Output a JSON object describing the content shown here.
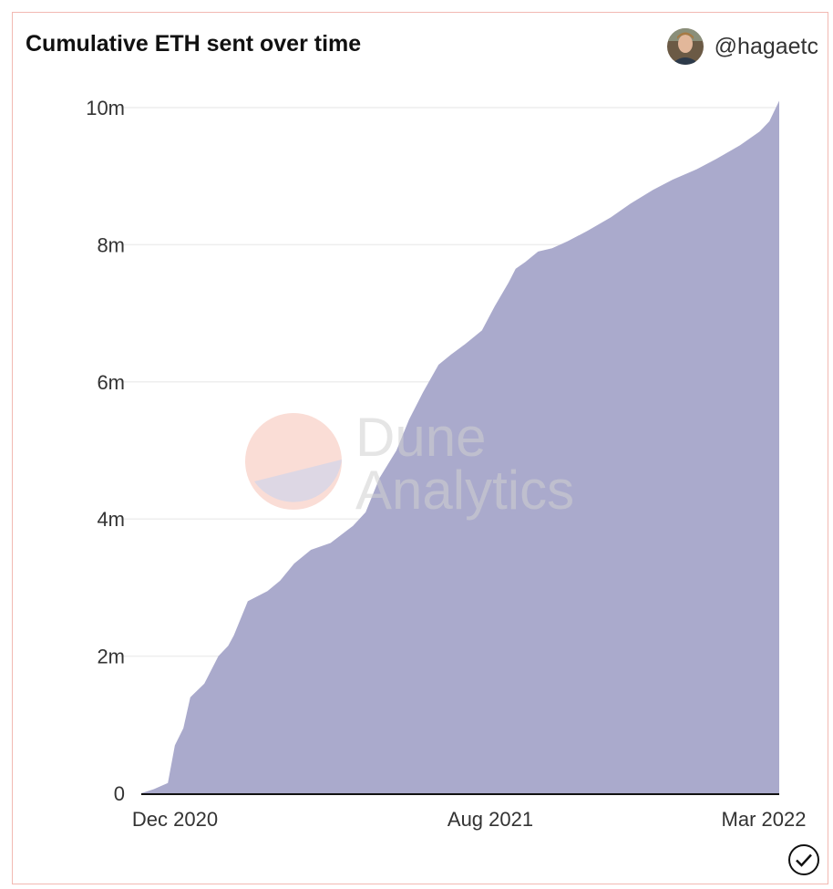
{
  "header": {
    "title": "Cumulative ETH sent over time",
    "author": "@hagaetc"
  },
  "watermark": {
    "line1": "Dune",
    "line2": "Analytics"
  },
  "colors": {
    "area": "#aaaacc",
    "grid": "#eeeeee",
    "border": "#f2b9b2",
    "axis": "#111111"
  },
  "chart_data": {
    "type": "area",
    "title": "Cumulative ETH sent over time",
    "xlabel": "",
    "ylabel": "",
    "x_ticks": [
      "Dec 2020",
      "Aug 2021",
      "Mar 2022"
    ],
    "x_range": [
      "2020-12-01",
      "2022-03-01"
    ],
    "ylim": [
      0,
      10000000
    ],
    "y_ticks": [
      {
        "value": 0,
        "label": "0"
      },
      {
        "value": 2000000,
        "label": "2m"
      },
      {
        "value": 4000000,
        "label": "4m"
      },
      {
        "value": 6000000,
        "label": "6m"
      },
      {
        "value": 8000000,
        "label": "8m"
      },
      {
        "value": 10000000,
        "label": "10m"
      }
    ],
    "grid": true,
    "legend": "none",
    "series": [
      {
        "x": [
          "2020-12-01",
          "2020-12-10",
          "2020-12-20",
          "2020-12-25",
          "2020-12-31",
          "2021-01-05",
          "2021-01-15",
          "2021-01-25",
          "2021-02-01",
          "2021-02-05",
          "2021-02-15",
          "2021-03-01",
          "2021-03-10",
          "2021-03-20",
          "2021-04-01",
          "2021-04-15",
          "2021-05-01",
          "2021-05-10",
          "2021-05-20",
          "2021-06-01",
          "2021-06-10",
          "2021-06-20",
          "2021-07-01",
          "2021-07-10",
          "2021-07-20",
          "2021-08-01",
          "2021-08-10",
          "2021-08-20",
          "2021-08-25",
          "2021-09-01",
          "2021-09-10",
          "2021-09-20",
          "2021-10-01",
          "2021-10-15",
          "2021-11-01",
          "2021-11-15",
          "2021-12-01",
          "2021-12-15",
          "2022-01-01",
          "2022-01-15",
          "2022-02-01",
          "2022-02-15",
          "2022-02-22",
          "2022-03-01"
        ],
        "values": [
          0,
          60000,
          150000,
          700000,
          950000,
          1400000,
          1600000,
          2000000,
          2150000,
          2300000,
          2800000,
          2950000,
          3100000,
          3350000,
          3550000,
          3650000,
          3900000,
          4100000,
          4600000,
          5000000,
          5450000,
          5850000,
          6250000,
          6400000,
          6550000,
          6750000,
          7100000,
          7450000,
          7650000,
          7750000,
          7900000,
          7950000,
          8050000,
          8200000,
          8400000,
          8600000,
          8800000,
          8950000,
          9100000,
          9250000,
          9450000,
          9650000,
          9800000,
          10100000
        ]
      }
    ]
  }
}
